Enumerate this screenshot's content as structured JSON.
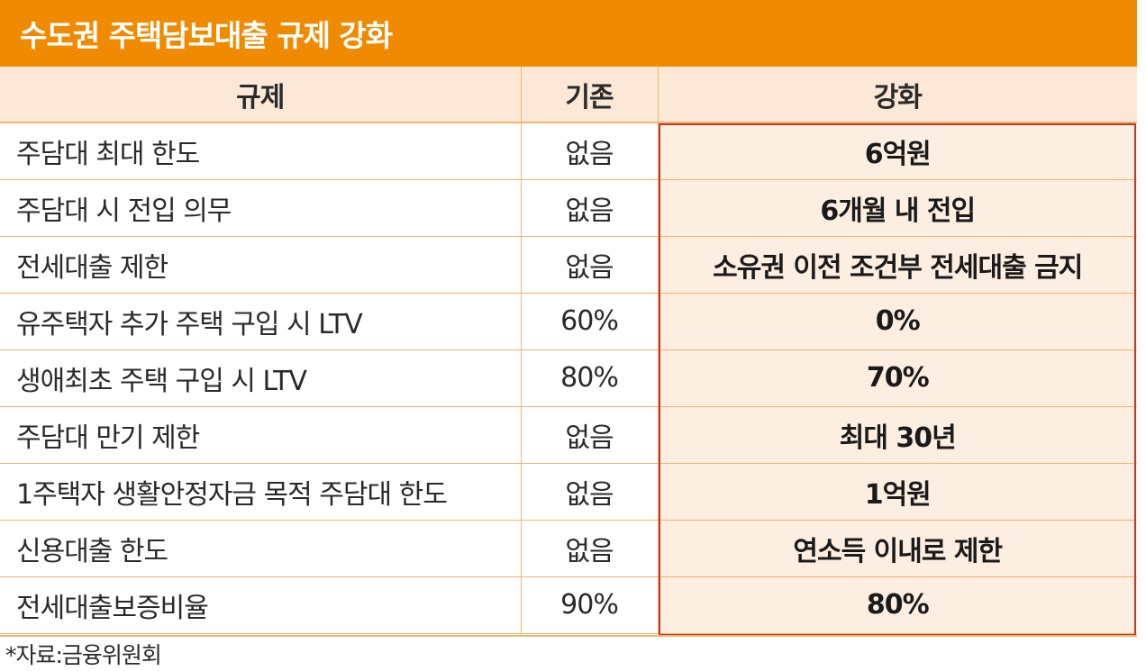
{
  "title": "수도권 주택담보대출 규제 강화",
  "headers": {
    "rule": "규제",
    "old": "기존",
    "new": "강화"
  },
  "rows": [
    {
      "rule": "주담대 최대 한도",
      "old": "없음",
      "new": "6억원"
    },
    {
      "rule": "주담대 시 전입 의무",
      "old": "없음",
      "new": "6개월 내 전입"
    },
    {
      "rule": "전세대출 제한",
      "old": "없음",
      "new": "소유권 이전 조건부 전세대출 금지"
    },
    {
      "rule": "유주택자 추가 주택 구입 시 LTV",
      "old": "60%",
      "new": "0%"
    },
    {
      "rule": "생애최초 주택 구입 시 LTV",
      "old": "80%",
      "new": "70%"
    },
    {
      "rule": "주담대 만기 제한",
      "old": "없음",
      "new": "최대 30년"
    },
    {
      "rule": "1주택자 생활안정자금 목적 주담대 한도",
      "old": "없음",
      "new": "1억원"
    },
    {
      "rule": "신용대출 한도",
      "old": "없음",
      "new": "연소득 이내로 제한"
    },
    {
      "rule": "전세대출보증비율",
      "old": "90%",
      "new": "80%"
    }
  ],
  "source": "*자료:금융위원회",
  "colors": {
    "title_bg": "#F08A00",
    "header_bg": "#FBE8D6",
    "highlight_bg": "#FDEEE2",
    "highlight_border": "#C0392B",
    "rule_line": "#F2B36A"
  }
}
